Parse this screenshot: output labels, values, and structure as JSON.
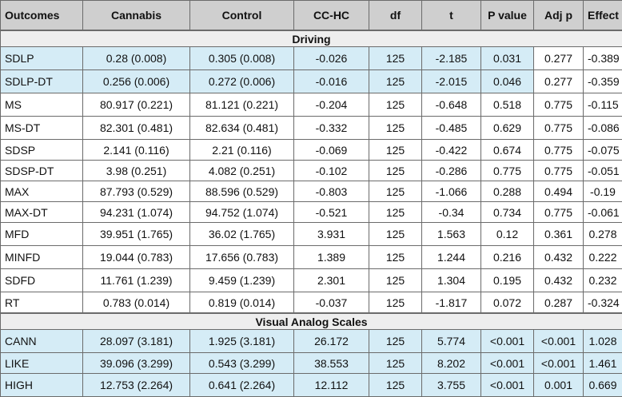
{
  "headers": [
    "Outcomes",
    "Cannabis",
    "Control",
    "CC-HC",
    "df",
    "t",
    "P value",
    "Adj p",
    "Effect"
  ],
  "sections": [
    {
      "title": "Driving",
      "rows": [
        {
          "cells": [
            "SDLP",
            "0.28 (0.008)",
            "0.305 (0.008)",
            "-0.026",
            "125",
            "-2.185",
            "0.031",
            "0.277",
            "-0.389"
          ],
          "highlight_upto": 7,
          "tall": true
        },
        {
          "cells": [
            "SDLP-DT",
            "0.256 (0.006)",
            "0.272 (0.006)",
            "-0.016",
            "125",
            "-2.015",
            "0.046",
            "0.277",
            "-0.359"
          ],
          "highlight_upto": 7,
          "tall": true
        },
        {
          "cells": [
            "MS",
            "80.917 (0.221)",
            "81.121 (0.221)",
            "-0.204",
            "125",
            "-0.648",
            "0.518",
            "0.775",
            "-0.115"
          ],
          "highlight_upto": 0,
          "tall": true
        },
        {
          "cells": [
            "MS-DT",
            "82.301 (0.481)",
            "82.634 (0.481)",
            "-0.332",
            "125",
            "-0.485",
            "0.629",
            "0.775",
            "-0.086"
          ],
          "highlight_upto": 0,
          "tall": true
        },
        {
          "cells": [
            "SDSP",
            "2.141 (0.116)",
            "2.21 (0.116)",
            "-0.069",
            "125",
            "-0.422",
            "0.674",
            "0.775",
            "-0.075"
          ],
          "highlight_upto": 0,
          "tall": false
        },
        {
          "cells": [
            "SDSP-DT",
            "3.98 (0.251)",
            "4.082 (0.251)",
            "-0.102",
            "125",
            "-0.286",
            "0.775",
            "0.775",
            "-0.051"
          ],
          "highlight_upto": 0,
          "tall": false
        },
        {
          "cells": [
            "MAX",
            "87.793 (0.529)",
            "88.596 (0.529)",
            "-0.803",
            "125",
            "-1.066",
            "0.288",
            "0.494",
            "-0.19"
          ],
          "highlight_upto": 0,
          "tall": false
        },
        {
          "cells": [
            "MAX-DT",
            "94.231 (1.074)",
            "94.752 (1.074)",
            "-0.521",
            "125",
            "-0.34",
            "0.734",
            "0.775",
            "-0.061"
          ],
          "highlight_upto": 0,
          "tall": false
        },
        {
          "cells": [
            "MFD",
            "39.951 (1.765)",
            "36.02 (1.765)",
            "3.931",
            "125",
            "1.563",
            "0.12",
            "0.361",
            "0.278"
          ],
          "highlight_upto": 0,
          "tall": true
        },
        {
          "cells": [
            "MINFD",
            "19.044 (0.783)",
            "17.656 (0.783)",
            "1.389",
            "125",
            "1.244",
            "0.216",
            "0.432",
            "0.222"
          ],
          "highlight_upto": 0,
          "tall": true
        },
        {
          "cells": [
            "SDFD",
            "11.761 (1.239)",
            "9.459 (1.239)",
            "2.301",
            "125",
            "1.304",
            "0.195",
            "0.432",
            "0.232"
          ],
          "highlight_upto": 0,
          "tall": true
        },
        {
          "cells": [
            "RT",
            "0.783 (0.014)",
            "0.819 (0.014)",
            "-0.037",
            "125",
            "-1.817",
            "0.072",
            "0.287",
            "-0.324"
          ],
          "highlight_upto": 0,
          "tall": false
        }
      ]
    },
    {
      "title": "Visual Analog Scales",
      "rows": [
        {
          "cells": [
            "CANN",
            "28.097 (3.181)",
            "1.925 (3.181)",
            "26.172",
            "125",
            "5.774",
            "<0.001",
            "<0.001",
            "1.028"
          ],
          "highlight_upto": 9,
          "tall": true
        },
        {
          "cells": [
            "LIKE",
            "39.096 (3.299)",
            "0.543 (3.299)",
            "38.553",
            "125",
            "8.202",
            "<0.001",
            "<0.001",
            "1.461"
          ],
          "highlight_upto": 9,
          "tall": false
        },
        {
          "cells": [
            "HIGH",
            "12.753 (2.264)",
            "0.641 (2.264)",
            "12.112",
            "125",
            "3.755",
            "<0.001",
            "0.001",
            "0.669"
          ],
          "highlight_upto": 9,
          "tall": true
        }
      ]
    }
  ]
}
